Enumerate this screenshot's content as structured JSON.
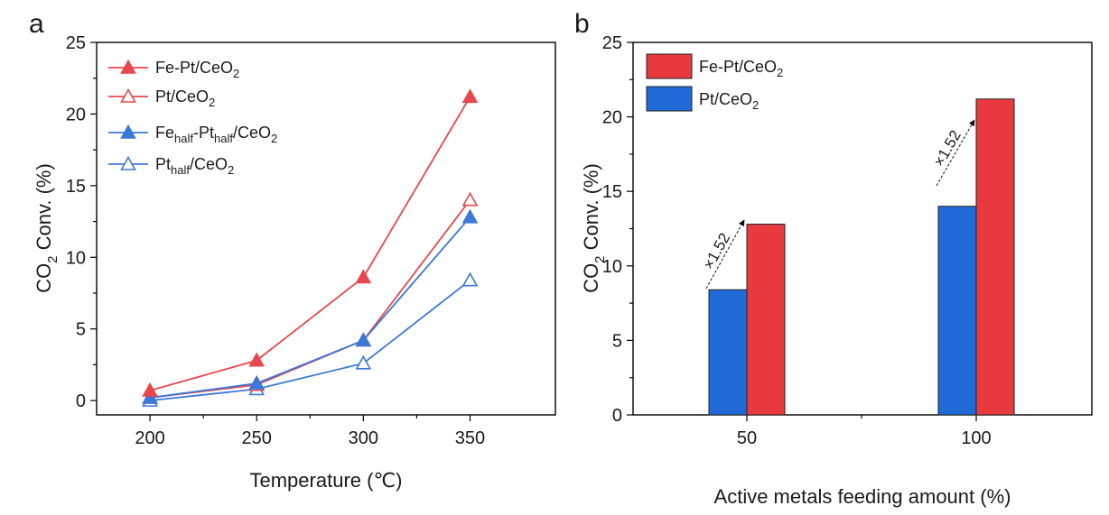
{
  "panel_a": {
    "label": "a",
    "xlabel": "Temperature (℃)",
    "ylabel_main": "CO",
    "ylabel_sub": "2",
    "ylabel_rest": " Conv. (%)",
    "legend": [
      {
        "pre": "Fe-Pt/CeO",
        "sub": "2",
        "mid": "",
        "sub2": "",
        "post": ""
      },
      {
        "pre": "Pt/CeO",
        "sub": "2",
        "mid": "",
        "sub2": "",
        "post": ""
      },
      {
        "pre": "Fe",
        "sub": "half",
        "mid": "-Pt",
        "sub2": "half",
        "post": "/CeO₂"
      },
      {
        "pre": "Pt",
        "sub": "half",
        "mid": "/CeO",
        "sub2": "2",
        "post": ""
      }
    ]
  },
  "panel_b": {
    "label": "b",
    "xlabel": "Active metals feeding amount (%)",
    "ylabel_main": "CO",
    "ylabel_sub": "2",
    "ylabel_rest": " Conv. (%)",
    "legend": [
      {
        "pre": "Fe-Pt/CeO",
        "sub": "2"
      },
      {
        "pre": "Pt/CeO",
        "sub": "2"
      }
    ],
    "annotations": [
      "×1.52",
      "×1.52"
    ]
  },
  "chart_data": [
    {
      "type": "line",
      "x": [
        200,
        250,
        300,
        350
      ],
      "xlim": [
        175,
        390
      ],
      "ylim": [
        -1,
        25
      ],
      "yticks": [
        0,
        5,
        10,
        15,
        20,
        25
      ],
      "xticks": [
        200,
        250,
        300,
        350
      ],
      "series": [
        {
          "name": "Fe-Pt/CeO2",
          "values": [
            0.7,
            2.8,
            8.6,
            21.2
          ],
          "color": "#e8474c",
          "marker": "triangle-filled"
        },
        {
          "name": "Pt/CeO2",
          "values": [
            0.2,
            1.1,
            4.2,
            14.0
          ],
          "color": "#e8474c",
          "marker": "triangle-open"
        },
        {
          "name": "Fe_half-Pt_half/CeO2",
          "values": [
            0.2,
            1.2,
            4.2,
            12.8
          ],
          "color": "#3b78d8",
          "marker": "triangle-filled"
        },
        {
          "name": "Pt_half/CeO2",
          "values": [
            0.0,
            0.8,
            2.6,
            8.4
          ],
          "color": "#3b78d8",
          "marker": "triangle-open"
        }
      ]
    },
    {
      "type": "bar",
      "categories": [
        "50",
        "100"
      ],
      "ylim": [
        0,
        25
      ],
      "yticks": [
        0,
        5,
        10,
        15,
        20,
        25
      ],
      "series": [
        {
          "name": "Pt/CeO2",
          "values": [
            8.4,
            14.0
          ],
          "color": "#1f6ad6"
        },
        {
          "name": "Fe-Pt/CeO2",
          "values": [
            12.8,
            21.2
          ],
          "color": "#e8393f"
        }
      ]
    }
  ]
}
